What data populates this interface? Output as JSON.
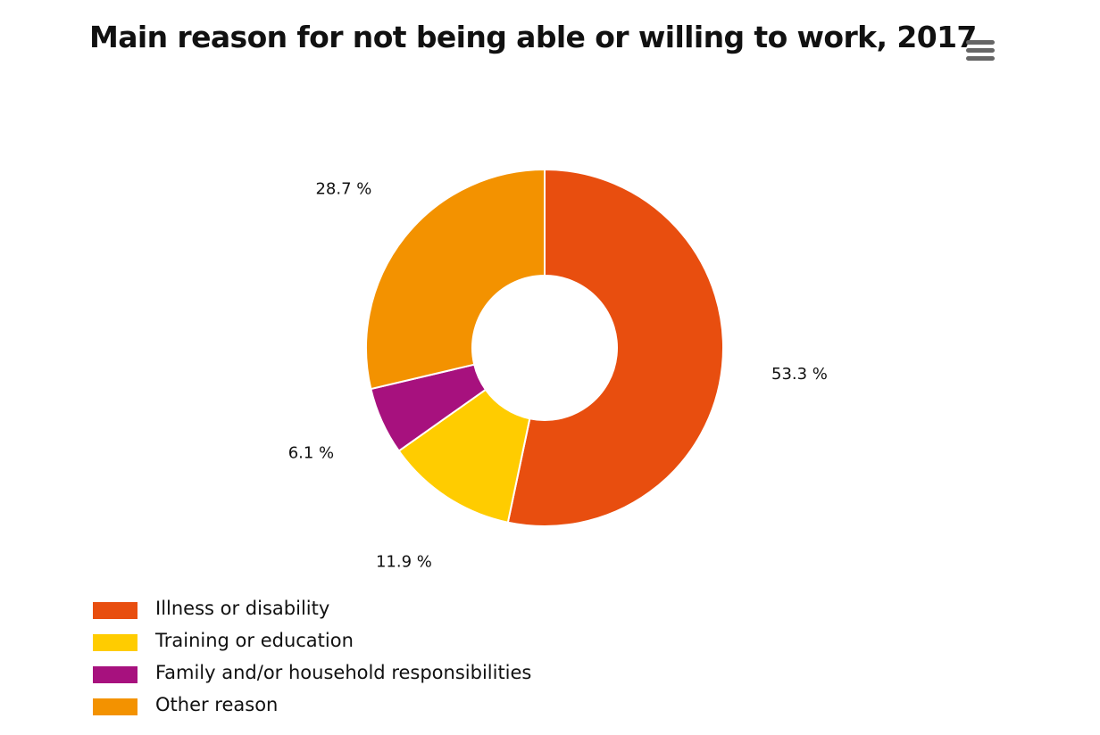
{
  "chart_data": {
    "type": "pie",
    "variant": "donut",
    "title": "Main reason for not being able or willing to work, 2017",
    "unit": "%",
    "categories": [
      "Illness or disability",
      "Training or education",
      "Family and/or household responsibilities",
      "Other reason"
    ],
    "values": [
      53.3,
      11.9,
      6.1,
      28.7
    ],
    "data_labels": [
      "53.3 %",
      "11.9 %",
      "6.1 %",
      "28.7 %"
    ],
    "colors": [
      "#e84e0f",
      "#ffcc00",
      "#a7117e",
      "#f39200"
    ],
    "legend_position": "bottom-left"
  },
  "toolbar": {
    "menu_icon": "hamburger-menu-icon"
  }
}
